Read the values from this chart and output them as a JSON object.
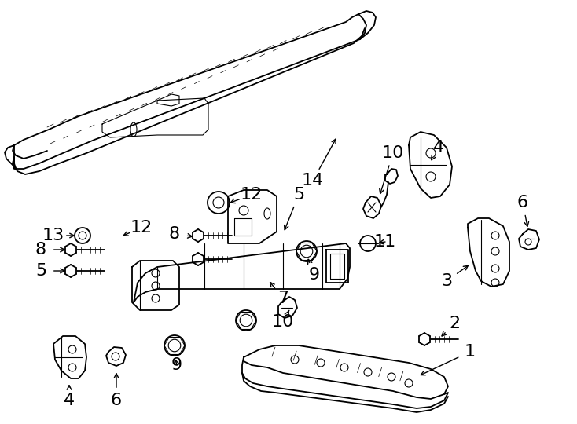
{
  "bg_color": "#ffffff",
  "line_color": "#000000",
  "fig_width": 7.34,
  "fig_height": 5.4,
  "dpi": 100,
  "font_size": 12,
  "bold_font_size": 14
}
